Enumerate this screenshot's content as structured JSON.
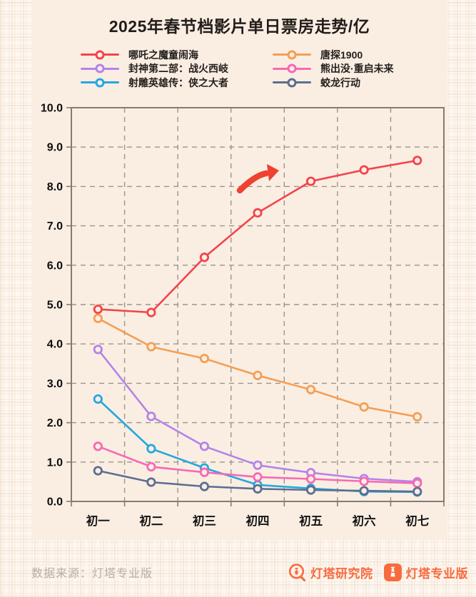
{
  "title": "2025年春节档影片单日票房走势/亿",
  "chart_data": {
    "type": "line",
    "title": "2025年春节档影片单日票房走势/亿",
    "categories": [
      "初一",
      "初二",
      "初三",
      "初四",
      "初五",
      "初六",
      "初七"
    ],
    "series": [
      {
        "name": "哪吒之魔童闹海",
        "color": "#f4434b",
        "values": [
          4.88,
          4.8,
          6.2,
          7.33,
          8.13,
          8.42,
          8.66
        ]
      },
      {
        "name": "唐探1900",
        "color": "#f59e53",
        "values": [
          4.65,
          3.93,
          3.63,
          3.2,
          2.84,
          2.4,
          2.15
        ]
      },
      {
        "name": "封神第二部：战火西岐",
        "color": "#b583e8",
        "values": [
          3.86,
          2.16,
          1.4,
          0.92,
          0.73,
          0.58,
          0.5
        ]
      },
      {
        "name": "熊出没·重启未来",
        "color": "#f868b4",
        "values": [
          1.4,
          0.88,
          0.74,
          0.62,
          0.57,
          0.51,
          0.46
        ]
      },
      {
        "name": "射雕英雄传：侠之大者",
        "color": "#25a8e0",
        "values": [
          2.6,
          1.34,
          0.85,
          0.42,
          0.33,
          0.25,
          0.24
        ]
      },
      {
        "name": "蛟龙行动",
        "color": "#5c6e90",
        "values": [
          0.78,
          0.49,
          0.38,
          0.32,
          0.29,
          0.27,
          0.25
        ]
      }
    ],
    "legend_columns": [
      [
        0,
        2,
        4
      ],
      [
        1,
        3,
        5
      ]
    ],
    "ylim": [
      0,
      10
    ],
    "ytick_step": 1.0,
    "ytick_labels": [
      "0.0",
      "1.0",
      "2.0",
      "3.0",
      "4.0",
      "5.0",
      "6.0",
      "7.0",
      "8.0",
      "9.0",
      "10.0"
    ],
    "grid": "dashed",
    "legend_position": "top",
    "annotation_arrow_color": "#ee4130"
  },
  "footer": {
    "source": "数据来源：灯塔专业版",
    "brand1": "灯塔研究院",
    "brand2": "灯塔专业版",
    "brand_color": "#f96b3f"
  }
}
